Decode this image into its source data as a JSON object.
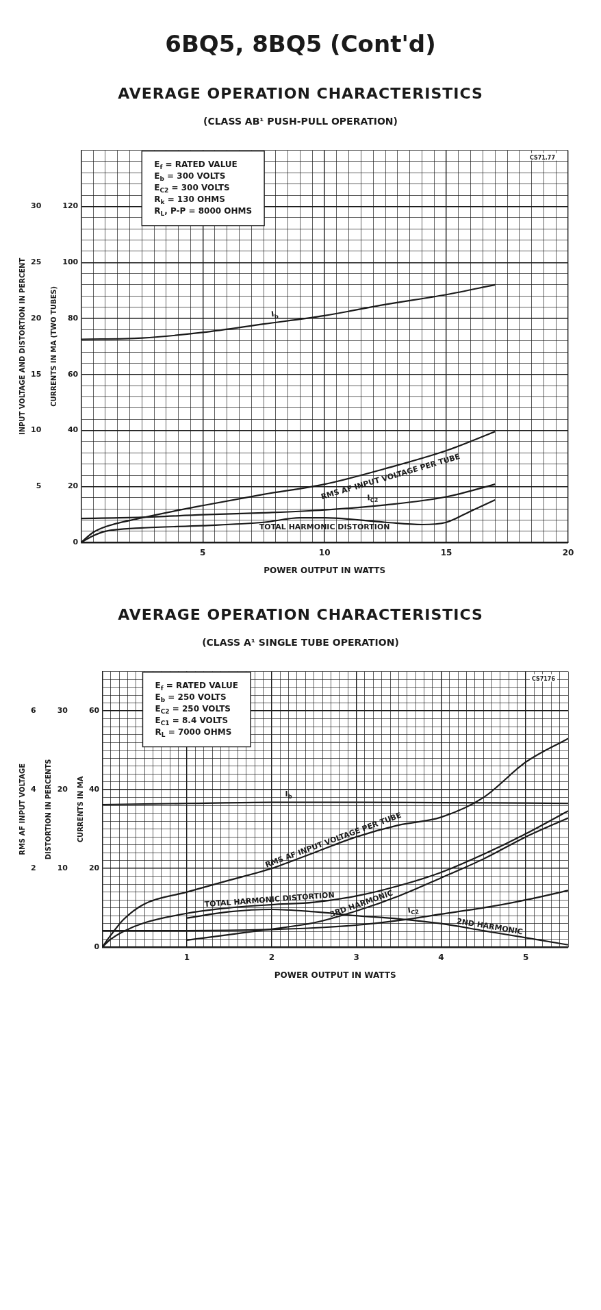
{
  "chart_data": [
    {
      "type": "line",
      "title": "AVERAGE OPERATION CHARACTERISTICS",
      "subtitle": "(CLASS AB¹ PUSH-PULL OPERATION)",
      "xlabel": "POWER OUTPUT IN WATTS",
      "ylabel": "INPUT VOLTAGE AND DISTORTION IN PERCENT",
      "y2label": "CURRENTS IN MA (TWO TUBES)",
      "annotations": [
        "6BQ5, 8BQ5 (Cont'd)",
        "E$_{f}$ = RATED VALUE",
        "E$_{b}$ = 300 VOLTS",
        "E$_{C2}$ = 300 VOLTS",
        "R$_{k}$ = 130 OHMS",
        "R$_{L}$, P-P = 8000 OHMS",
        "CS71.77"
      ],
      "xlim": [
        0,
        20
      ],
      "ylim": [
        0,
        35
      ],
      "y2lim": [
        0,
        140
      ],
      "grid": true,
      "xticks": [
        {
          "value": 0,
          "label": null
        },
        {
          "value": 0.5,
          "label": null
        },
        {
          "value": 1,
          "label": null
        },
        {
          "value": 1.5,
          "label": null
        },
        {
          "value": 2,
          "label": null
        },
        {
          "value": 2.5,
          "label": null
        },
        {
          "value": 3,
          "label": null
        },
        {
          "value": 3.5,
          "label": null
        },
        {
          "value": 4,
          "label": null
        },
        {
          "value": 4.5,
          "label": null
        },
        5,
        {
          "value": 5.5,
          "label": null
        },
        {
          "value": 6,
          "label": null
        },
        {
          "value": 6.5,
          "label": null
        },
        {
          "value": 7,
          "label": null
        },
        {
          "value": 7.5,
          "label": null
        },
        {
          "value": 8,
          "label": null
        },
        {
          "value": 8.5,
          "label": null
        },
        {
          "value": 9,
          "label": null
        },
        {
          "value": 9.5,
          "label": null
        },
        10,
        {
          "value": 10.5,
          "label": null
        },
        {
          "value": 11,
          "label": null
        },
        {
          "value": 11.5,
          "label": null
        },
        {
          "value": 12,
          "label": null
        },
        {
          "value": 12.5,
          "label": null
        },
        {
          "value": 13,
          "label": null
        },
        {
          "value": 13.5,
          "label": null
        },
        {
          "value": 14,
          "label": null
        },
        {
          "value": 14.5,
          "label": null
        },
        15,
        {
          "value": 15.5,
          "label": null
        },
        {
          "value": 16,
          "label": null
        },
        {
          "value": 16.5,
          "label": null
        },
        {
          "value": 17,
          "label": null
        },
        {
          "value": 17.5,
          "label": null
        },
        {
          "value": 18,
          "label": null
        },
        {
          "value": 18.5,
          "label": null
        },
        {
          "value": 19,
          "label": null
        },
        {
          "value": 19.5,
          "label": null
        },
        20
      ],
      "yticks": [
        5,
        10,
        15,
        20,
        25,
        30
      ],
      "y2ticks": [
        0,
        {
          "value": 4,
          "label": null
        },
        {
          "value": 8,
          "label": null
        },
        {
          "value": 12,
          "label": null
        },
        {
          "value": 16,
          "label": null
        },
        20,
        {
          "value": 24,
          "label": null
        },
        {
          "value": 28,
          "label": null
        },
        {
          "value": 32,
          "label": null
        },
        {
          "value": 36,
          "label": null
        },
        40,
        {
          "value": 44,
          "label": null
        },
        {
          "value": 48,
          "label": null
        },
        {
          "value": 52,
          "label": null
        },
        {
          "value": 56,
          "label": null
        },
        60,
        {
          "value": 64,
          "label": null
        },
        {
          "value": 68,
          "label": null
        },
        {
          "value": 72,
          "label": null
        },
        {
          "value": 76,
          "label": null
        },
        80,
        {
          "value": 84,
          "label": null
        },
        {
          "value": 88,
          "label": null
        },
        {
          "value": 92,
          "label": null
        },
        {
          "value": 96,
          "label": null
        },
        100,
        {
          "value": 104,
          "label": null
        },
        {
          "value": 108,
          "label": null
        },
        {
          "value": 112,
          "label": null
        },
        {
          "value": 116,
          "label": null
        },
        120,
        {
          "value": 124,
          "label": null
        },
        {
          "value": 128,
          "label": null
        },
        {
          "value": 132,
          "label": null
        },
        {
          "value": 136,
          "label": null
        },
        {
          "value": 140,
          "label": null
        }
      ],
      "series": [
        {
          "name": "I$_{b}$",
          "color": "#1a1a1a",
          "axis": "y2",
          "x": [
            0,
            2.5,
            5,
            7.5,
            10,
            12.5,
            15,
            17
          ],
          "values": [
            72.5,
            73,
            75,
            78,
            81,
            85,
            88.5,
            92
          ]
        },
        {
          "name": "RMS AF INPUT VOLTAGE PER TUBE",
          "color": "#1a1a1a",
          "x": [
            0,
            0.5,
            1,
            2.5,
            5,
            7.5,
            10,
            12.5,
            15,
            17
          ],
          "values": [
            0,
            0.9,
            1.4,
            2.2,
            3.3,
            4.3,
            5.2,
            6.6,
            8.2,
            9.9
          ]
        },
        {
          "name": "I$_{C2}$",
          "color": "#1a1a1a",
          "axis": "y2",
          "x": [
            0,
            2.5,
            5,
            7.5,
            10,
            12.5,
            15,
            17
          ],
          "values": [
            8.6,
            9,
            9.9,
            10.6,
            11.6,
            13.4,
            16.3,
            20.8
          ]
        },
        {
          "name": "TOTAL HARMONIC DISTORTION",
          "color": "#1a1a1a",
          "x": [
            0,
            0.5,
            1,
            2.5,
            5,
            7.5,
            9,
            10,
            12.5,
            14,
            15,
            16,
            17
          ],
          "values": [
            0,
            0.6,
            1,
            1.3,
            1.5,
            1.8,
            2.2,
            2.2,
            1.8,
            1.6,
            1.8,
            2.8,
            3.8
          ]
        }
      ]
    },
    {
      "type": "line",
      "title": "AVERAGE OPERATION CHARACTERISTICS",
      "subtitle": "(CLASS A¹ SINGLE TUBE OPERATION)",
      "xlabel": "POWER OUTPUT IN WATTS",
      "ylabel": "RMS AF INPUT VOLTAGE",
      "y2label": "DISTORTION IN PERCENTS",
      "y3label": "CURRENTS IN MA",
      "annotations": [
        "E$_{f}$ = RATED VALUE",
        "E$_{b}$ = 250 VOLTS",
        "E$_{C2}$ = 250 VOLTS",
        "E$_{C1}$ = 8.4 VOLTS",
        "R$_{L}$ = 7000 OHMS",
        "CS7176"
      ],
      "xlim": [
        0,
        5.5
      ],
      "ylim": [
        0,
        7
      ],
      "y2lim": [
        0,
        35
      ],
      "y3lim": [
        0,
        70
      ],
      "grid": true,
      "xticks": [
        {
          "value": 0,
          "label": null
        },
        {
          "value": 0.1,
          "label": null
        },
        {
          "value": 0.2,
          "label": null
        },
        {
          "value": 0.3,
          "label": null
        },
        {
          "value": 0.4,
          "label": null
        },
        {
          "value": 0.5,
          "label": null
        },
        {
          "value": 0.6,
          "label": null
        },
        {
          "value": 0.7,
          "label": null
        },
        {
          "value": 0.8,
          "label": null
        },
        {
          "value": 0.9,
          "label": null
        },
        1,
        {
          "value": 1.1,
          "label": null
        },
        {
          "value": 1.2,
          "label": null
        },
        {
          "value": 1.3,
          "label": null
        },
        {
          "value": 1.4,
          "label": null
        },
        {
          "value": 1.5,
          "label": null
        },
        {
          "value": 1.6,
          "label": null
        },
        {
          "value": 1.7,
          "label": null
        },
        {
          "value": 1.8,
          "label": null
        },
        {
          "value": 1.9,
          "label": null
        },
        2,
        {
          "value": 2.1,
          "label": null
        },
        {
          "value": 2.2,
          "label": null
        },
        {
          "value": 2.3,
          "label": null
        },
        {
          "value": 2.4,
          "label": null
        },
        {
          "value": 2.5,
          "label": null
        },
        {
          "value": 2.6,
          "label": null
        },
        {
          "value": 2.7,
          "label": null
        },
        {
          "value": 2.8,
          "label": null
        },
        {
          "value": 2.9,
          "label": null
        },
        3,
        {
          "value": 3.1,
          "label": null
        },
        {
          "value": 3.2,
          "label": null
        },
        {
          "value": 3.3,
          "label": null
        },
        {
          "value": 3.4,
          "label": null
        },
        {
          "value": 3.5,
          "label": null
        },
        {
          "value": 3.6,
          "label": null
        },
        {
          "value": 3.7,
          "label": null
        },
        {
          "value": 3.8,
          "label": null
        },
        {
          "value": 3.9,
          "label": null
        },
        4,
        {
          "value": 4.1,
          "label": null
        },
        {
          "value": 4.2,
          "label": null
        },
        {
          "value": 4.3,
          "label": null
        },
        {
          "value": 4.4,
          "label": null
        },
        {
          "value": 4.5,
          "label": null
        },
        {
          "value": 4.6,
          "label": null
        },
        {
          "value": 4.7,
          "label": null
        },
        {
          "value": 4.8,
          "label": null
        },
        {
          "value": 4.9,
          "label": null
        },
        5,
        {
          "value": 5.1,
          "label": null
        },
        {
          "value": 5.2,
          "label": null
        },
        {
          "value": 5.3,
          "label": null
        },
        {
          "value": 5.4,
          "label": null
        },
        {
          "value": 5.5,
          "label": null
        }
      ],
      "yticks": [
        2,
        4,
        6
      ],
      "y2ticks": [
        10,
        20,
        30
      ],
      "y3ticks": [
        0,
        {
          "value": 2,
          "label": null
        },
        {
          "value": 4,
          "label": null
        },
        {
          "value": 6,
          "label": null
        },
        {
          "value": 8,
          "label": null
        },
        {
          "value": 10,
          "label": null
        },
        {
          "value": 12,
          "label": null
        },
        {
          "value": 14,
          "label": null
        },
        {
          "value": 16,
          "label": null
        },
        {
          "value": 18,
          "label": null
        },
        20,
        {
          "value": 22,
          "label": null
        },
        {
          "value": 24,
          "label": null
        },
        {
          "value": 26,
          "label": null
        },
        {
          "value": 28,
          "label": null
        },
        {
          "value": 30,
          "label": null
        },
        {
          "value": 32,
          "label": null
        },
        {
          "value": 34,
          "label": null
        },
        {
          "value": 36,
          "label": null
        },
        {
          "value": 38,
          "label": null
        },
        40,
        {
          "value": 42,
          "label": null
        },
        {
          "value": 44,
          "label": null
        },
        {
          "value": 46,
          "label": null
        },
        {
          "value": 48,
          "label": null
        },
        {
          "value": 50,
          "label": null
        },
        {
          "value": 52,
          "label": null
        },
        {
          "value": 54,
          "label": null
        },
        {
          "value": 56,
          "label": null
        },
        {
          "value": 58,
          "label": null
        },
        60,
        {
          "value": 62,
          "label": null
        },
        {
          "value": 64,
          "label": null
        },
        {
          "value": 66,
          "label": null
        },
        {
          "value": 68,
          "label": null
        },
        {
          "value": 70,
          "label": null
        }
      ],
      "series": [
        {
          "name": "I$_{b}$",
          "color": "#1a1a1a",
          "axis": "y3",
          "x": [
            0,
            1,
            2,
            3,
            4,
            5,
            5.5
          ],
          "values": [
            36.2,
            36.5,
            36.8,
            36.8,
            36.7,
            36.6,
            36.5
          ]
        },
        {
          "name": "RMS AF INPUT VOLTAGE PER TUBE",
          "color": "#1a1a1a",
          "x": [
            0,
            0.1,
            0.25,
            0.5,
            1,
            1.5,
            2,
            2.5,
            3,
            3.5,
            4,
            4.5,
            5,
            5.5
          ],
          "values": [
            0,
            0.3,
            0.7,
            1.1,
            1.4,
            1.7,
            2,
            2.4,
            2.8,
            3.1,
            3.3,
            3.8,
            4.7,
            5.3
          ]
        },
        {
          "name": "TOTAL HARMONIC DISTORTION",
          "color": "#1a1a1a",
          "axis": "y2",
          "x": [
            0,
            0.1,
            0.25,
            0.5,
            1,
            1.5,
            2,
            2.5,
            3,
            3.5,
            4,
            4.5,
            5,
            5.5
          ],
          "values": [
            0,
            1,
            2,
            3.1,
            4.3,
            5,
            5.4,
            5.7,
            6.5,
            7.8,
            9.5,
            11.8,
            14.4,
            17.3
          ]
        },
        {
          "name": "3RD HARMONIC",
          "color": "#1a1a1a",
          "axis": "y2",
          "x": [
            1,
            1.5,
            2,
            2.5,
            3,
            3.5,
            4,
            4.5,
            5,
            5.5
          ],
          "values": [
            0.9,
            1.6,
            2.3,
            3.1,
            4.6,
            6.5,
            8.8,
            11.2,
            14,
            16.4
          ]
        },
        {
          "name": "I$_{C2}$",
          "color": "#1a1a1a",
          "axis": "y3",
          "x": [
            0,
            1,
            2,
            2.5,
            3,
            3.5,
            4,
            4.5,
            5,
            5.5
          ],
          "values": [
            4.2,
            4.2,
            4.5,
            4.9,
            5.6,
            6.8,
            8.4,
            10,
            12,
            14.4
          ]
        },
        {
          "name": "2ND HARMONIC",
          "color": "#1a1a1a",
          "axis": "y2",
          "x": [
            1,
            1.5,
            2,
            2.5,
            3,
            3.5,
            4,
            4.5,
            5,
            5.5
          ],
          "values": [
            3.7,
            4.5,
            4.8,
            4.5,
            4,
            3.6,
            3,
            2.1,
            1.2,
            0.3
          ]
        }
      ]
    }
  ]
}
